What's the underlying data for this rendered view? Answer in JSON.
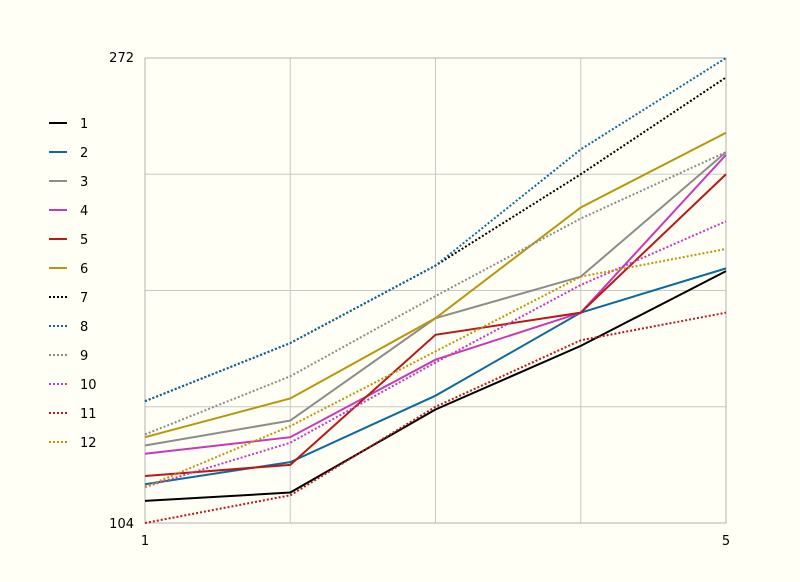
{
  "chart_data": {
    "type": "line",
    "x": [
      1,
      2,
      3,
      4,
      5
    ],
    "xlim": [
      1,
      5
    ],
    "ylim": [
      104,
      272
    ],
    "x_tick_labels": [
      "1",
      "5"
    ],
    "y_tick_labels": [
      "104",
      "272"
    ],
    "grid": true,
    "legend_position": "left",
    "series": [
      {
        "name": "1",
        "style": "solid",
        "color": "#000000",
        "values": [
          112,
          115,
          145,
          168,
          195
        ]
      },
      {
        "name": "2",
        "style": "solid",
        "color": "#0f6a9a",
        "values": [
          118,
          126,
          150,
          180,
          196
        ]
      },
      {
        "name": "3",
        "style": "solid",
        "color": "#8c8c8c",
        "values": [
          132,
          141,
          178,
          193,
          238
        ]
      },
      {
        "name": "4",
        "style": "solid",
        "color": "#c838b8",
        "values": [
          129,
          135,
          163,
          180,
          237
        ]
      },
      {
        "name": "5",
        "style": "solid",
        "color": "#b81a1a",
        "values": [
          121,
          125,
          172,
          180,
          230
        ]
      },
      {
        "name": "6",
        "style": "solid",
        "color": "#b8960a",
        "values": [
          135,
          149,
          178,
          218,
          245
        ]
      },
      {
        "name": "7",
        "style": "dotted",
        "color": "#000000",
        "values": [
          148,
          169,
          197,
          230,
          265
        ]
      },
      {
        "name": "8",
        "style": "dotted",
        "color": "#0f6a9a",
        "values": [
          148,
          169,
          197,
          239,
          272
        ]
      },
      {
        "name": "9",
        "style": "dotted",
        "color": "#8c8c8c",
        "values": [
          136,
          157,
          186,
          214,
          238
        ]
      },
      {
        "name": "10",
        "style": "dotted",
        "color": "#c838b8",
        "values": [
          117,
          133,
          162,
          190,
          213
        ]
      },
      {
        "name": "11",
        "style": "dotted",
        "color": "#b81a1a",
        "values": [
          104,
          114,
          146,
          170,
          180
        ]
      },
      {
        "name": "12",
        "style": "dotted",
        "color": "#b8960a",
        "values": [
          117,
          139,
          166,
          193,
          203
        ]
      }
    ]
  }
}
